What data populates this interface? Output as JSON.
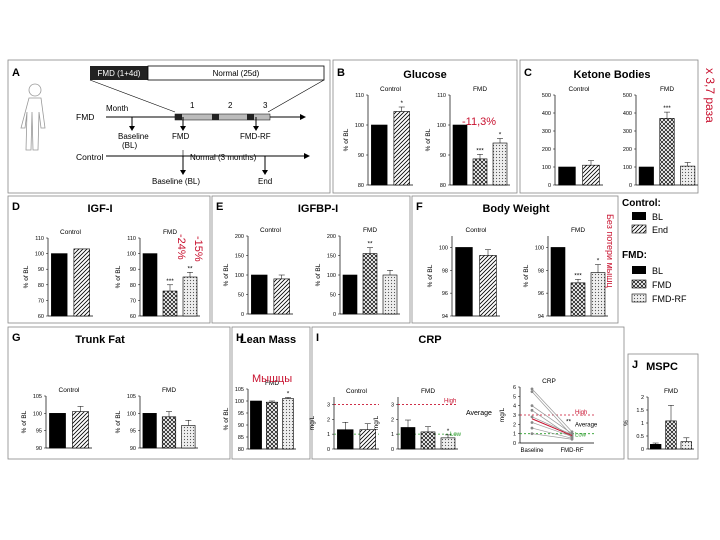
{
  "panelA": {
    "letter": "A",
    "fmd_box": "FMD (1+4d)",
    "normal_box": "Normal (25d)",
    "month": "Month",
    "m1": "1",
    "m2": "2",
    "m3": "3",
    "fmd_row": "FMD",
    "control_row": "Control",
    "baseline": "Baseline",
    "bl": "(BL)",
    "fmd": "FMD",
    "fmdrf": "FMD-RF",
    "normal3": "Normal (3 months)",
    "baseline_bl": "Baseline (BL)",
    "end": "End"
  },
  "legend": {
    "control": "Control:",
    "bl": "BL",
    "end": "End",
    "fmd": "FMD:",
    "fmd_bl": "BL",
    "fmd_fmd": "FMD",
    "fmd_rf": "FMD-RF"
  },
  "annotations": {
    "glucose": "-11,3%",
    "ketone": "x 3,7 раза",
    "igf1": "-15%",
    "igf2": "-24%",
    "bw": "Без потери мышц",
    "lean": "Мышцы"
  },
  "chart_data": [
    {
      "id": "B",
      "type": "bar",
      "title": "Glucose",
      "ylabel": "% of BL",
      "groups": [
        {
          "name": "Control",
          "ylim": [
            80,
            110
          ],
          "ticks": [
            80,
            90,
            100,
            110
          ],
          "categories": [
            "BL",
            "End"
          ],
          "values": [
            100,
            104.5
          ],
          "err": [
            0,
            1.5
          ],
          "sig": [
            "",
            "*"
          ]
        },
        {
          "name": "FMD",
          "ylim": [
            80,
            110
          ],
          "ticks": [
            80,
            90,
            100,
            110
          ],
          "categories": [
            "BL",
            "FMD",
            "FMD-RF"
          ],
          "values": [
            100,
            88.7,
            94
          ],
          "err": [
            0,
            1.5,
            1.5
          ],
          "sig": [
            "",
            "***",
            "*"
          ]
        }
      ]
    },
    {
      "id": "C",
      "type": "bar",
      "title": "Ketone Bodies",
      "ylabel": "",
      "groups": [
        {
          "name": "Control",
          "ylim": [
            0,
            500
          ],
          "ticks": [
            0,
            100,
            200,
            300,
            400,
            500
          ],
          "categories": [
            "BL",
            "End"
          ],
          "values": [
            100,
            110
          ],
          "err": [
            0,
            25
          ],
          "sig": [
            "",
            ""
          ]
        },
        {
          "name": "FMD",
          "ylim": [
            0,
            500
          ],
          "ticks": [
            0,
            100,
            200,
            300,
            400,
            500
          ],
          "categories": [
            "BL",
            "FMD",
            "FMD-RF"
          ],
          "values": [
            100,
            370,
            105
          ],
          "err": [
            0,
            35,
            20
          ],
          "sig": [
            "",
            "***",
            ""
          ]
        }
      ]
    },
    {
      "id": "D",
      "type": "bar",
      "title": "IGF-I",
      "ylabel": "% of BL",
      "groups": [
        {
          "name": "Control",
          "ylim": [
            60,
            110
          ],
          "ticks": [
            60,
            70,
            80,
            90,
            100,
            110
          ],
          "categories": [
            "BL",
            "End"
          ],
          "values": [
            100,
            103
          ],
          "err": [
            0,
            0
          ],
          "sig": [
            "",
            ""
          ]
        },
        {
          "name": "FMD",
          "ylim": [
            60,
            110
          ],
          "ticks": [
            60,
            70,
            80,
            90,
            100,
            110
          ],
          "categories": [
            "BL",
            "FMD",
            "FMD-RF"
          ],
          "values": [
            100,
            76,
            85
          ],
          "err": [
            0,
            4,
            3
          ],
          "sig": [
            "",
            "***",
            "**"
          ]
        }
      ]
    },
    {
      "id": "E",
      "type": "bar",
      "title": "IGFBP-I",
      "ylabel": "% of BL",
      "groups": [
        {
          "name": "Control",
          "ylim": [
            0,
            200
          ],
          "ticks": [
            0,
            50,
            100,
            150,
            200
          ],
          "categories": [
            "BL",
            "End"
          ],
          "values": [
            100,
            90
          ],
          "err": [
            0,
            10
          ],
          "sig": [
            "",
            ""
          ]
        },
        {
          "name": "FMD",
          "ylim": [
            0,
            200
          ],
          "ticks": [
            0,
            50,
            100,
            150,
            200
          ],
          "categories": [
            "BL",
            "FMD",
            "FMD-RF"
          ],
          "values": [
            100,
            155,
            100
          ],
          "err": [
            0,
            15,
            12
          ],
          "sig": [
            "",
            "**",
            ""
          ]
        }
      ]
    },
    {
      "id": "F",
      "type": "bar",
      "title": "Body Weight",
      "ylabel": "% of BL",
      "groups": [
        {
          "name": "Control",
          "ylim": [
            94,
            101
          ],
          "ticks": [
            94,
            96,
            98,
            100
          ],
          "categories": [
            "BL",
            "End"
          ],
          "values": [
            100,
            99.3
          ],
          "err": [
            0,
            0.5
          ],
          "sig": [
            "",
            ""
          ]
        },
        {
          "name": "FMD",
          "ylim": [
            94,
            101
          ],
          "ticks": [
            94,
            96,
            98,
            100
          ],
          "categories": [
            "BL",
            "FMD",
            "FMD-RF"
          ],
          "values": [
            100,
            96.9,
            97.8
          ],
          "err": [
            0,
            0.3,
            0.7
          ],
          "sig": [
            "",
            "***",
            "*"
          ]
        }
      ]
    },
    {
      "id": "G",
      "type": "bar",
      "title": "Trunk Fat",
      "ylabel": "% of BL",
      "groups": [
        {
          "name": "Control",
          "ylim": [
            90,
            105
          ],
          "ticks": [
            90,
            95,
            100,
            105
          ],
          "categories": [
            "BL",
            "End"
          ],
          "values": [
            100,
            100.5
          ],
          "err": [
            0,
            1.5
          ],
          "sig": [
            "",
            ""
          ]
        },
        {
          "name": "FMD",
          "ylim": [
            90,
            105
          ],
          "ticks": [
            90,
            95,
            100,
            105
          ],
          "categories": [
            "BL",
            "FMD",
            "FMD-RF"
          ],
          "values": [
            100,
            99,
            96.5
          ],
          "err": [
            0,
            1.5,
            1.5
          ],
          "sig": [
            "",
            "",
            ""
          ]
        }
      ]
    },
    {
      "id": "H",
      "type": "bar",
      "title": "Lean Mass",
      "ylabel": "% of BL",
      "groups": [
        {
          "name": "FMD",
          "ylim": [
            80,
            105
          ],
          "ticks": [
            80,
            85,
            90,
            95,
            100,
            105
          ],
          "categories": [
            "BL",
            "FMD",
            "FMD-RF"
          ],
          "values": [
            100,
            99.5,
            101
          ],
          "err": [
            0,
            0.5,
            0.5
          ],
          "sig": [
            "",
            "",
            "*"
          ]
        }
      ]
    },
    {
      "id": "I",
      "type": "bar",
      "title": "CRP",
      "ylabel": "mg/L",
      "groups": [
        {
          "name": "Control",
          "ylim": [
            0,
            3.5
          ],
          "ticks": [
            0,
            1,
            2,
            3
          ],
          "categories": [
            "BL",
            "End"
          ],
          "values": [
            1.3,
            1.3
          ],
          "err": [
            0.5,
            0.4
          ],
          "sig": [
            "",
            ""
          ],
          "high": 3,
          "low": 1
        },
        {
          "name": "FMD",
          "ylim": [
            0,
            3.5
          ],
          "ticks": [
            0,
            1,
            2,
            3
          ],
          "categories": [
            "BL",
            "FMD",
            "FMD-RF"
          ],
          "values": [
            1.45,
            1.15,
            0.75
          ],
          "err": [
            0.5,
            0.35,
            0.2
          ],
          "sig": [
            "",
            "",
            "*"
          ],
          "high": 3,
          "low": 1
        }
      ],
      "average_label": "Average",
      "high_label": "High",
      "low_label": "Low"
    },
    {
      "id": "I2",
      "type": "line",
      "title": "CRP",
      "ylabel": "mg/L",
      "ylim": [
        0,
        6
      ],
      "ticks": [
        0,
        1,
        2,
        3,
        4,
        5,
        6
      ],
      "x": [
        "Baseline",
        "FMD-RF"
      ],
      "series": [
        [
          5.8,
          1.2
        ],
        [
          5.5,
          0.8
        ],
        [
          4.0,
          1.0
        ],
        [
          3.5,
          0.6
        ],
        [
          2.8,
          0.9
        ],
        [
          2.2,
          0.7
        ],
        [
          1.6,
          0.5
        ],
        [
          1.0,
          0.4
        ]
      ],
      "average": [
        2.6,
        0.8
      ],
      "high": 3,
      "low": 1,
      "sig": "**",
      "high_label": "High",
      "average_label": "Average",
      "low_label": "Low"
    },
    {
      "id": "J",
      "type": "bar",
      "title": "MSPC",
      "ylabel": "%",
      "groups": [
        {
          "name": "FMD",
          "ylim": [
            0,
            2.0
          ],
          "ticks": [
            0,
            0.5,
            1.0,
            1.5,
            2.0
          ],
          "categories": [
            "BL",
            "FMD",
            "FMD-RF"
          ],
          "values": [
            0.18,
            1.08,
            0.28
          ],
          "err": [
            0.05,
            0.6,
            0.15
          ],
          "sig": [
            "",
            "",
            ""
          ]
        }
      ]
    }
  ]
}
